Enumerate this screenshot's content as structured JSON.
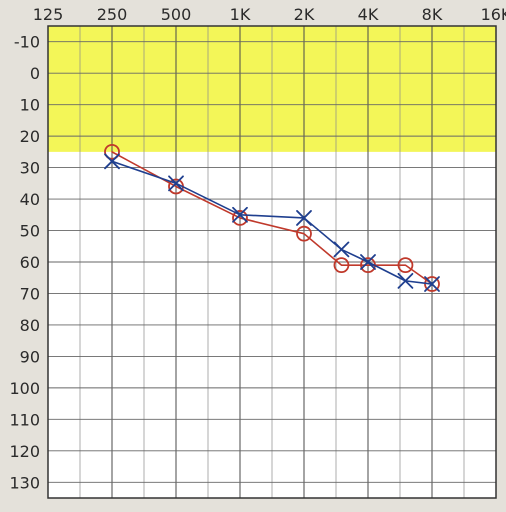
{
  "chart_data": {
    "type": "line",
    "title": "",
    "xlabel": "",
    "ylabel": "",
    "x_scale": "log",
    "y_inverted": true,
    "x_ticks": [
      {
        "label": "125",
        "value": 125
      },
      {
        "label": "250",
        "value": 250
      },
      {
        "label": "500",
        "value": 500
      },
      {
        "label": "1K",
        "value": 1000
      },
      {
        "label": "2K",
        "value": 2000
      },
      {
        "label": "4K",
        "value": 4000
      },
      {
        "label": "8K",
        "value": 8000
      },
      {
        "label": "16K",
        "value": 16000
      }
    ],
    "y_ticks": [
      "-10",
      "0",
      "10",
      "20",
      "30",
      "40",
      "50",
      "60",
      "70",
      "80",
      "90",
      "100",
      "110",
      "120",
      "130"
    ],
    "ylim": [
      -15,
      135
    ],
    "grid": true,
    "shaded_band": {
      "from": -15,
      "to": 25,
      "color": "#f2f54a"
    },
    "series": [
      {
        "marker": "o",
        "color": "#c0392b",
        "x": [
          250,
          500,
          1000,
          2000,
          3000,
          4000,
          6000,
          8000
        ],
        "y": [
          25,
          36,
          46,
          51,
          61,
          61,
          61,
          67
        ]
      },
      {
        "marker": "x",
        "color": "#1f3f8f",
        "x": [
          250,
          500,
          1000,
          2000,
          3000,
          4000,
          6000,
          8000
        ],
        "y": [
          28,
          35,
          45,
          46,
          56,
          60,
          66,
          67
        ]
      }
    ]
  }
}
